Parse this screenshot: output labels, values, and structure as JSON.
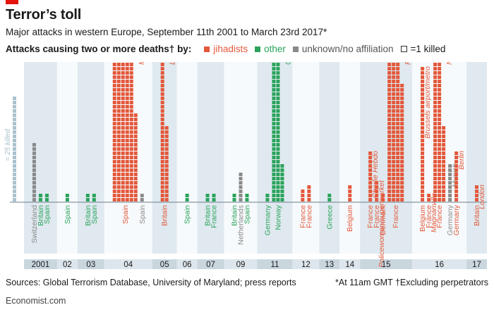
{
  "title": "Terror’s toll",
  "subtitle": "Major attacks in western Europe, September 11th 2001 to March 23rd 2017*",
  "legend": {
    "label": "Attacks causing two or more deaths† by:",
    "jihadists": "jihadists",
    "other": "other",
    "unknown": "unknown/no affiliation",
    "box": "=1 killed"
  },
  "colors": {
    "jihadists": "#e3583b",
    "other": "#2aa35b",
    "unknown": "#8a8a8a",
    "scale": "#a9c2cf",
    "band": "#dfe9ef"
  },
  "source": "Sources: Global Terrorism Database, University of Maryland; press reports",
  "note": "*At 11am GMT  †Excluding perpetrators",
  "brand": "Economist.com",
  "chart_data": {
    "type": "bar",
    "unit": "1 box = 1 killed",
    "scale": {
      "label": "= 25 killed",
      "value": 25
    },
    "attacks": [
      {
        "year": "2001",
        "country": "Switzerland",
        "deaths": 14,
        "type": "unknown"
      },
      {
        "year": "2001",
        "country": "Britain",
        "deaths": 2,
        "type": "other"
      },
      {
        "year": "2001",
        "country": "Spain",
        "deaths": 2,
        "type": "other"
      },
      {
        "year": "02",
        "country": "Spain",
        "deaths": 2,
        "type": "other"
      },
      {
        "year": "03",
        "country": "Britain",
        "deaths": 2,
        "type": "other"
      },
      {
        "year": "03",
        "country": "Spain",
        "deaths": 2,
        "type": "other"
      },
      {
        "year": "04",
        "country": "Spain",
        "deaths": 191,
        "type": "jihadists",
        "annotation": "Madrid trains"
      },
      {
        "year": "04",
        "country": "Spain",
        "deaths": 2,
        "type": "unknown"
      },
      {
        "year": "05",
        "country": "Britain",
        "deaths": 52,
        "type": "jihadists",
        "annotation": "London Tube/bus"
      },
      {
        "year": "06",
        "country": "Spain",
        "deaths": 2,
        "type": "other"
      },
      {
        "year": "07",
        "country": "Britain",
        "deaths": 2,
        "type": "other"
      },
      {
        "year": "07",
        "country": "France",
        "deaths": 2,
        "type": "other"
      },
      {
        "year": "09",
        "country": "Britain",
        "deaths": 2,
        "type": "other"
      },
      {
        "year": "09",
        "country": "Netherlands",
        "deaths": 7,
        "type": "unknown"
      },
      {
        "year": "09",
        "country": "Spain",
        "deaths": 2,
        "type": "other"
      },
      {
        "year": "11",
        "country": "Germany",
        "deaths": 2,
        "type": "other"
      },
      {
        "year": "11",
        "country": "Norway",
        "deaths": 77,
        "type": "other",
        "annotation": "Oslo/Utøya Island"
      },
      {
        "year": "12",
        "country": "France",
        "deaths": 3,
        "type": "jihadists"
      },
      {
        "year": "12",
        "country": "France",
        "deaths": 4,
        "type": "jihadists"
      },
      {
        "year": "13",
        "country": "Greece",
        "deaths": 2,
        "type": "other"
      },
      {
        "year": "14",
        "country": "Belgium",
        "deaths": 4,
        "type": "jihadists"
      },
      {
        "year": "15",
        "country": "France",
        "deaths": 12,
        "type": "jihadists",
        "annotation": "Charlie Hebdo"
      },
      {
        "year": "15",
        "country": "France",
        "deaths": 5,
        "type": "jihadists",
        "annotation": "Policewoman/supermarket"
      },
      {
        "year": "15",
        "country": "Denmark",
        "deaths": 2,
        "type": "jihadists"
      },
      {
        "year": "15",
        "country": "France",
        "deaths": 130,
        "type": "jihadists",
        "annotation": "Paris"
      },
      {
        "year": "16",
        "country": "Belgium",
        "deaths": 32,
        "type": "jihadists",
        "annotation": "Brussels airport/metro"
      },
      {
        "year": "16",
        "country": "France",
        "deaths": 2,
        "type": "jihadists",
        "annotation": "Magnanville"
      },
      {
        "year": "16",
        "country": "France",
        "deaths": 86,
        "type": "jihadists",
        "annotation": "Nice"
      },
      {
        "year": "16",
        "country": "Germany",
        "deaths": 9,
        "type": "unknown",
        "annotation": "Munich"
      },
      {
        "year": "16",
        "country": "Germany",
        "deaths": 12,
        "type": "jihadists",
        "annotation": "Berlin"
      },
      {
        "year": "17",
        "country": "Britain",
        "deaths": 4,
        "type": "jihadists",
        "annotation": "London"
      }
    ]
  }
}
